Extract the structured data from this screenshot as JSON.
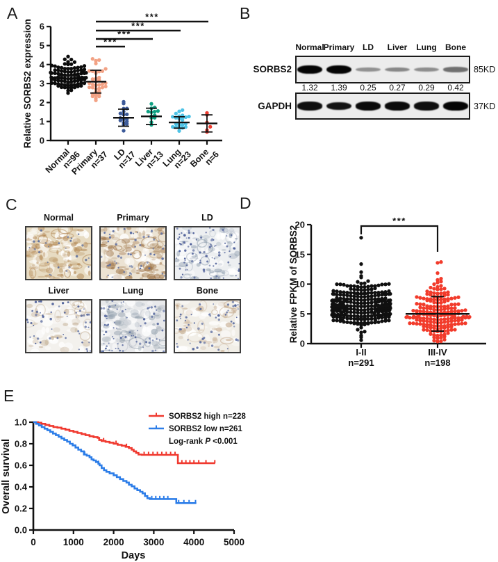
{
  "panels": {
    "a": "A",
    "b": "B",
    "c": "C",
    "d": "D",
    "e": "E"
  },
  "chart_data": [
    {
      "id": "A",
      "type": "scatter",
      "title": "",
      "ylabel": "Relative SORBS2 expression",
      "ylim": [
        0,
        6
      ],
      "yticks": [
        0,
        1,
        2,
        3,
        4,
        5,
        6
      ],
      "legend_position": "none",
      "grid": false,
      "groups": [
        {
          "label": "Normal",
          "n_label": "n=96",
          "n": 96,
          "color": "#0b0b0b",
          "mean": 3.4,
          "sd": 0.42,
          "min": 2.4,
          "max": 4.45
        },
        {
          "label": "Primary",
          "n_label": "n=37",
          "n": 37,
          "color": "#F2A285",
          "mean": 3.1,
          "sd": 0.6,
          "min": 1.9,
          "max": 4.5
        },
        {
          "label": "LD",
          "n_label": "n=17",
          "n": 17,
          "color": "#3C5A99",
          "mean": 1.2,
          "sd": 0.45,
          "min": 0.4,
          "max": 2.3
        },
        {
          "label": "Liver",
          "n_label": "n=13",
          "n": 13,
          "color": "#0FA183",
          "mean": 1.27,
          "sd": 0.43,
          "min": 0.6,
          "max": 2.3
        },
        {
          "label": "Lung",
          "n_label": "n=23",
          "n": 23,
          "color": "#4EC3E6",
          "mean": 0.95,
          "sd": 0.3,
          "min": 0.45,
          "max": 1.7
        },
        {
          "label": "Bone",
          "n_label": "n=6",
          "n": 6,
          "color": "#EE3B2E",
          "mean": 0.9,
          "sd": 0.45,
          "min": 0.4,
          "max": 1.5,
          "values": [
            1.45,
            1.35,
            0.95,
            0.72,
            0.55,
            0.45
          ]
        }
      ],
      "significance": [
        {
          "from": "Primary",
          "to": "LD",
          "label": "***"
        },
        {
          "from": "Primary",
          "to": "Liver",
          "label": "***"
        },
        {
          "from": "Primary",
          "to": "Lung",
          "label": "***"
        },
        {
          "from": "Primary",
          "to": "Bone",
          "label": "***"
        }
      ]
    },
    {
      "id": "D",
      "type": "scatter",
      "title": "",
      "ylabel": "Relative FPKM of SORBS2",
      "ylim": [
        0,
        20
      ],
      "yticks": [
        0,
        5,
        10,
        15,
        20
      ],
      "grid": false,
      "groups": [
        {
          "label": "I-II",
          "n_label": "n=291",
          "n": 291,
          "color": "#101010",
          "mean": 6.3,
          "sd": 2.0,
          "min": 0.15,
          "max": 14.2,
          "outliers": [
            17.8
          ]
        },
        {
          "label": "III-IV",
          "n_label": "n=198",
          "n": 198,
          "color": "#F23B2B",
          "mean": 5.0,
          "sd": 2.9,
          "min": 0.2,
          "max": 14.7
        }
      ],
      "significance": [
        {
          "from": "I-II",
          "to": "III-IV",
          "label": "***"
        }
      ]
    },
    {
      "id": "E",
      "type": "line",
      "subtype": "kaplan-meier-step",
      "xlabel": "Days",
      "ylabel": "Overall survival",
      "xlim": [
        0,
        5000
      ],
      "xticks": [
        0,
        1000,
        2000,
        3000,
        4000,
        5000
      ],
      "ylim": [
        0,
        1
      ],
      "ytick_labels": [
        "0.0",
        "0.2",
        "0.4",
        "0.6",
        "0.8",
        "1.0"
      ],
      "annotation": {
        "prefix": "Log-rank ",
        "italic": "P",
        "suffix": " <0.001"
      },
      "legend_position": "top-right-inside",
      "series": [
        {
          "name": "SORBS2 high n=228",
          "color": "#F0392F",
          "points": [
            [
              0,
              1.0
            ],
            [
              120,
              0.995
            ],
            [
              200,
              0.985
            ],
            [
              300,
              0.975
            ],
            [
              400,
              0.965
            ],
            [
              500,
              0.955
            ],
            [
              600,
              0.95
            ],
            [
              700,
              0.94
            ],
            [
              800,
              0.93
            ],
            [
              900,
              0.92
            ],
            [
              1000,
              0.91
            ],
            [
              1100,
              0.9
            ],
            [
              1200,
              0.89
            ],
            [
              1300,
              0.88
            ],
            [
              1400,
              0.87
            ],
            [
              1500,
              0.862
            ],
            [
              1600,
              0.855
            ],
            [
              1640,
              0.835
            ],
            [
              1700,
              0.825
            ],
            [
              1800,
              0.818
            ],
            [
              1900,
              0.81
            ],
            [
              2000,
              0.8
            ],
            [
              2100,
              0.79
            ],
            [
              2200,
              0.782
            ],
            [
              2300,
              0.772
            ],
            [
              2380,
              0.76
            ],
            [
              2450,
              0.745
            ],
            [
              2500,
              0.73
            ],
            [
              2560,
              0.715
            ],
            [
              2620,
              0.7
            ],
            [
              2700,
              0.697
            ],
            [
              3600,
              0.62
            ],
            [
              4530,
              0.62
            ]
          ],
          "censor_ticks": [
            1750,
            2060,
            2320,
            2760,
            2870,
            2980,
            3090,
            3200,
            3310,
            3420,
            3530,
            3700,
            3800,
            3900,
            4000,
            4120,
            4300,
            4520
          ]
        },
        {
          "name": "SORBS2 low n=261",
          "color": "#2C7DE8",
          "points": [
            [
              0,
              1.0
            ],
            [
              70,
              0.985
            ],
            [
              140,
              0.97
            ],
            [
              210,
              0.955
            ],
            [
              280,
              0.94
            ],
            [
              350,
              0.925
            ],
            [
              420,
              0.91
            ],
            [
              490,
              0.895
            ],
            [
              560,
              0.88
            ],
            [
              630,
              0.865
            ],
            [
              700,
              0.85
            ],
            [
              770,
              0.835
            ],
            [
              840,
              0.82
            ],
            [
              910,
              0.8
            ],
            [
              980,
              0.785
            ],
            [
              1050,
              0.765
            ],
            [
              1120,
              0.745
            ],
            [
              1190,
              0.73
            ],
            [
              1260,
              0.7
            ],
            [
              1330,
              0.69
            ],
            [
              1400,
              0.675
            ],
            [
              1450,
              0.655
            ],
            [
              1500,
              0.645
            ],
            [
              1560,
              0.63
            ],
            [
              1620,
              0.615
            ],
            [
              1650,
              0.6
            ],
            [
              1700,
              0.575
            ],
            [
              1760,
              0.555
            ],
            [
              1820,
              0.54
            ],
            [
              1900,
              0.525
            ],
            [
              2000,
              0.508
            ],
            [
              2080,
              0.49
            ],
            [
              2160,
              0.472
            ],
            [
              2240,
              0.455
            ],
            [
              2320,
              0.44
            ],
            [
              2380,
              0.42
            ],
            [
              2450,
              0.405
            ],
            [
              2520,
              0.385
            ],
            [
              2590,
              0.37
            ],
            [
              2660,
              0.355
            ],
            [
              2720,
              0.34
            ],
            [
              2780,
              0.315
            ],
            [
              2840,
              0.295
            ],
            [
              2900,
              0.288
            ],
            [
              3450,
              0.288
            ],
            [
              3560,
              0.25
            ],
            [
              4060,
              0.25
            ]
          ],
          "censor_ticks": [
            1280,
            1620,
            2950,
            3050,
            3150,
            3250,
            3350,
            3620,
            3750,
            3880,
            4040
          ]
        }
      ]
    }
  ],
  "western_blot": {
    "lanes": [
      "Normal",
      "Primary",
      "LD",
      "Liver",
      "Lung",
      "Bone"
    ],
    "rows": [
      {
        "protein": "SORBS2",
        "kd": "85KD",
        "intensities": [
          1,
          1,
          0.28,
          0.33,
          0.3,
          0.45
        ],
        "quantification": [
          "1.32",
          "1.39",
          "0.25",
          "0.27",
          "0.29",
          "0.42"
        ]
      },
      {
        "protein": "GAPDH",
        "kd": "37KD",
        "intensities": [
          0.95,
          0.93,
          0.97,
          0.97,
          0.95,
          1
        ]
      }
    ]
  },
  "ihc": {
    "panels": [
      {
        "label": "Normal",
        "base": "#e7dbc2",
        "stain": "#b18550",
        "stain_density": 1.0,
        "nuclei": "#62739f",
        "nuclei_count": 25
      },
      {
        "label": "Primary",
        "base": "#ece3d3",
        "stain": "#9d7244",
        "stain_density": 0.95,
        "nuclei": "#5b6da2",
        "nuclei_count": 55
      },
      {
        "label": "LD",
        "base": "#edeff1",
        "stain": "#8e9dae",
        "stain_density": 0.55,
        "nuclei": "#52639b",
        "nuclei_count": 85
      },
      {
        "label": "Liver",
        "base": "#f3f1ed",
        "stain": "#bfa98c",
        "stain_density": 0.35,
        "nuclei": "#50629a",
        "nuclei_count": 55
      },
      {
        "label": "Lung",
        "base": "#e8e9eb",
        "stain": "#93a0ad",
        "stain_density": 0.65,
        "nuclei": "#55679d",
        "nuclei_count": 75
      },
      {
        "label": "Bone",
        "base": "#f1eee7",
        "stain": "#bfa283",
        "stain_density": 0.4,
        "nuclei": "#55679d",
        "nuclei_count": 55
      }
    ]
  }
}
